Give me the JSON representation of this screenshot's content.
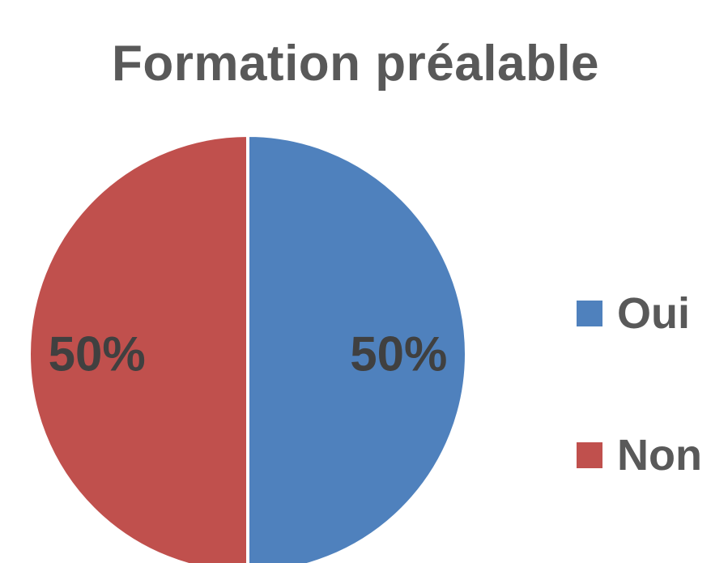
{
  "chart_data": {
    "type": "pie",
    "title": "Formation préalable",
    "categories": [
      "Oui",
      "Non"
    ],
    "values": [
      50,
      50
    ],
    "data_labels": [
      "50%",
      "50%"
    ],
    "colors": [
      "#4F81BD",
      "#C0504D"
    ],
    "legend_position": "right",
    "start_angle_deg": 0,
    "direction": "clockwise"
  }
}
